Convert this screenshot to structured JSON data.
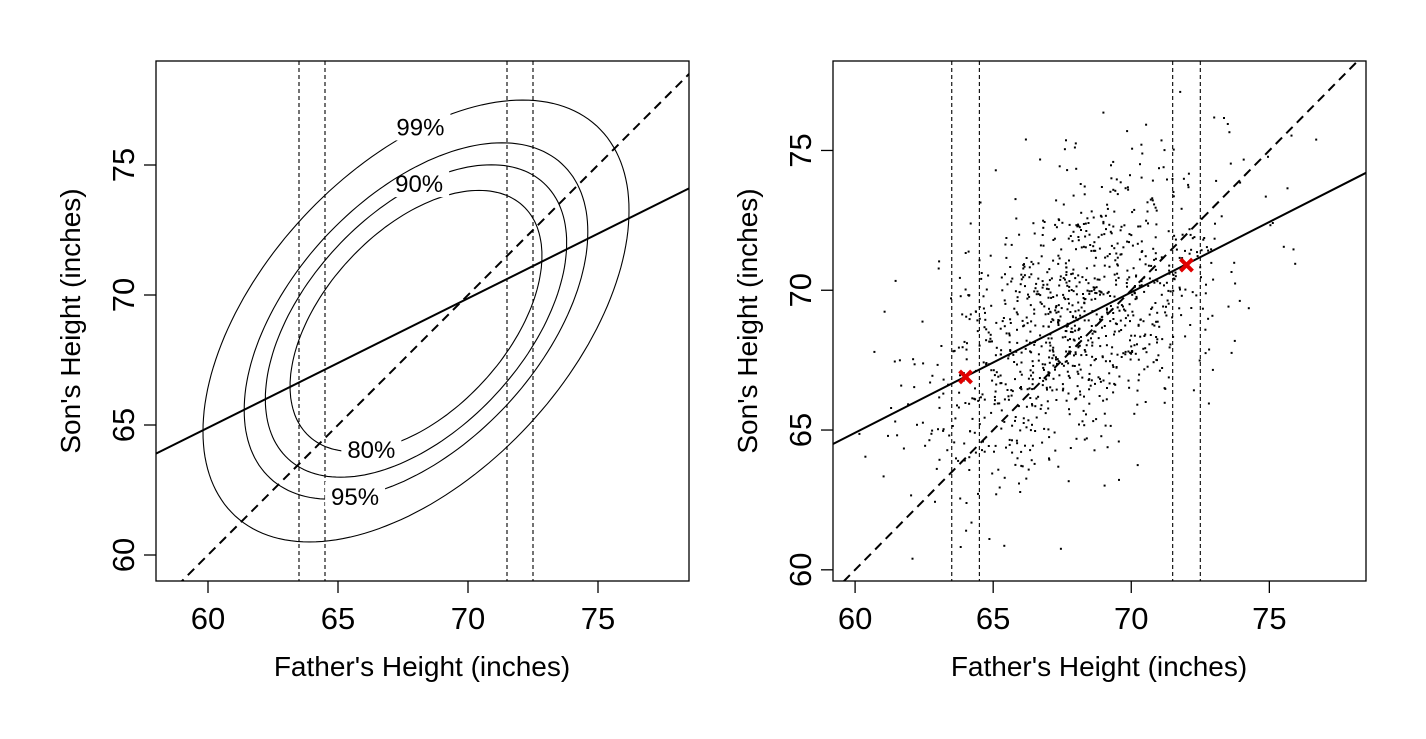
{
  "chart_data": [
    {
      "type": "contour",
      "xlabel": "Father's Height (inches)",
      "ylabel": "Son's Height (inches)",
      "xlim": [
        58,
        78.5
      ],
      "ylim": [
        59,
        79
      ],
      "xticks": [
        60,
        65,
        70,
        75
      ],
      "yticks": [
        60,
        65,
        70,
        75
      ],
      "grid": false,
      "bivariate_normal": {
        "mean_x": 68,
        "mean_y": 69,
        "sd_x": 2.7,
        "sd_y": 2.8,
        "r": 0.5
      },
      "contour_levels": [
        {
          "label": "80%",
          "p": 0.8
        },
        {
          "label": "90%",
          "p": 0.9
        },
        {
          "label": "95%",
          "p": 0.95
        },
        {
          "label": "99%",
          "p": 0.99
        }
      ],
      "vertical_lines_x": [
        63.5,
        64.5,
        71.5,
        72.5
      ],
      "reference_line_y_equals_x": {
        "style": "dashed",
        "x": [
          58,
          78.5
        ]
      },
      "regression_line": {
        "style": "solid",
        "x": [
          58,
          78.5
        ],
        "y": [
          63.9,
          74.1
        ]
      }
    },
    {
      "type": "scatter",
      "xlabel": "Father's Height (inches)",
      "ylabel": "Son's Height (inches)",
      "xlim": [
        59.2,
        78.5
      ],
      "ylim": [
        59.6,
        78.2
      ],
      "xticks": [
        60,
        65,
        70,
        75
      ],
      "yticks": [
        60,
        65,
        70,
        75
      ],
      "grid": false,
      "n_points": 1078,
      "scatter_mean_x": 68.0,
      "scatter_mean_y": 69.0,
      "vertical_lines_x": [
        63.5,
        64.5,
        71.5,
        72.5
      ],
      "reference_line_y_equals_x": {
        "style": "dashed",
        "x": [
          59.2,
          78.5
        ]
      },
      "regression_line": {
        "style": "solid",
        "x": [
          59.2,
          78.5
        ],
        "y": [
          64.5,
          74.2
        ]
      },
      "highlighted_points": [
        {
          "x": 64.0,
          "y": 66.9,
          "color": "#e00000",
          "marker": "x"
        },
        {
          "x": 72.0,
          "y": 70.9,
          "color": "#e00000",
          "marker": "x"
        }
      ]
    }
  ]
}
